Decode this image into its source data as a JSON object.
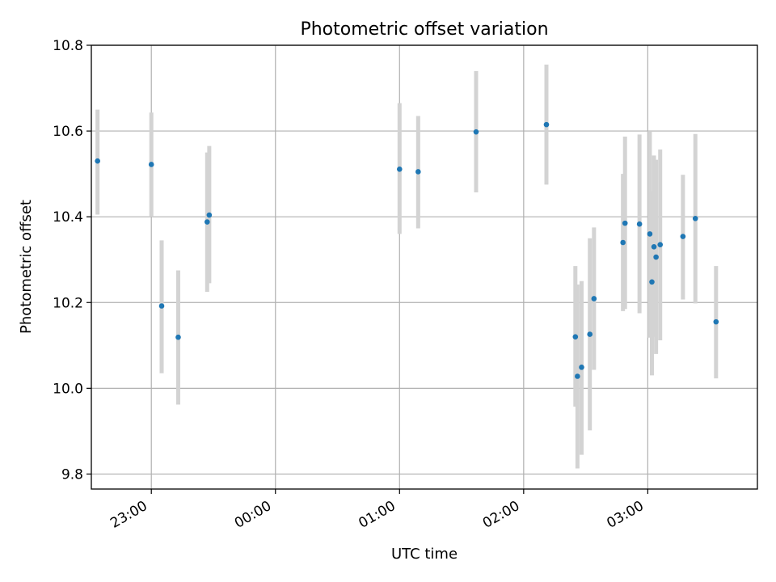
{
  "chart_data": {
    "type": "scatter",
    "title": "Photometric offset variation",
    "xlabel": "UTC time",
    "ylabel": "Photometric offset",
    "grid": true,
    "legend": "none",
    "x_unit": "UTC time (HH:MM)",
    "xlim": [
      "22:31",
      "03:53"
    ],
    "ylim": [
      9.765,
      10.8
    ],
    "x_ticks": [
      "23:00",
      "00:00",
      "01:00",
      "02:00",
      "03:00"
    ],
    "y_ticks": [
      "9.8",
      "10.0",
      "10.2",
      "10.4",
      "10.6",
      "10.8"
    ],
    "series": [
      {
        "marker_color": "#1f77b4",
        "errorbar_color": "#d3d3d3",
        "points": [
          {
            "x": "22:34",
            "y": 10.53,
            "y_low": 10.405,
            "y_high": 10.65
          },
          {
            "x": "23:00",
            "y": 10.522,
            "y_low": 10.4,
            "y_high": 10.643
          },
          {
            "x": "23:05",
            "y": 10.192,
            "y_low": 10.035,
            "y_high": 10.345
          },
          {
            "x": "23:13",
            "y": 10.119,
            "y_low": 9.962,
            "y_high": 10.275
          },
          {
            "x": "23:27",
            "y": 10.388,
            "y_low": 10.225,
            "y_high": 10.55
          },
          {
            "x": "23:28",
            "y": 10.404,
            "y_low": 10.245,
            "y_high": 10.565
          },
          {
            "x": "01:00",
            "y": 10.511,
            "y_low": 10.36,
            "y_high": 10.665
          },
          {
            "x": "01:09",
            "y": 10.505,
            "y_low": 10.373,
            "y_high": 10.635
          },
          {
            "x": "01:37",
            "y": 10.598,
            "y_low": 10.457,
            "y_high": 10.74
          },
          {
            "x": "02:11",
            "y": 10.615,
            "y_low": 10.475,
            "y_high": 10.755
          },
          {
            "x": "02:25",
            "y": 10.12,
            "y_low": 9.957,
            "y_high": 10.285
          },
          {
            "x": "02:26",
            "y": 10.028,
            "y_low": 9.813,
            "y_high": 10.242
          },
          {
            "x": "02:28",
            "y": 10.049,
            "y_low": 9.845,
            "y_high": 10.25
          },
          {
            "x": "02:32",
            "y": 10.126,
            "y_low": 9.902,
            "y_high": 10.35
          },
          {
            "x": "02:34",
            "y": 10.209,
            "y_low": 10.043,
            "y_high": 10.375
          },
          {
            "x": "02:48",
            "y": 10.34,
            "y_low": 10.18,
            "y_high": 10.5
          },
          {
            "x": "02:49",
            "y": 10.385,
            "y_low": 10.185,
            "y_high": 10.587
          },
          {
            "x": "02:56",
            "y": 10.383,
            "y_low": 10.175,
            "y_high": 10.592
          },
          {
            "x": "03:01",
            "y": 10.36,
            "y_low": 10.118,
            "y_high": 10.6
          },
          {
            "x": "03:02",
            "y": 10.248,
            "y_low": 10.03,
            "y_high": 10.46
          },
          {
            "x": "03:03",
            "y": 10.33,
            "y_low": 10.12,
            "y_high": 10.543
          },
          {
            "x": "03:04",
            "y": 10.306,
            "y_low": 10.08,
            "y_high": 10.533
          },
          {
            "x": "03:06",
            "y": 10.335,
            "y_low": 10.112,
            "y_high": 10.557
          },
          {
            "x": "03:17",
            "y": 10.354,
            "y_low": 10.207,
            "y_high": 10.498
          },
          {
            "x": "03:23",
            "y": 10.396,
            "y_low": 10.198,
            "y_high": 10.593
          },
          {
            "x": "03:33",
            "y": 10.155,
            "y_low": 10.023,
            "y_high": 10.285
          }
        ]
      }
    ]
  }
}
